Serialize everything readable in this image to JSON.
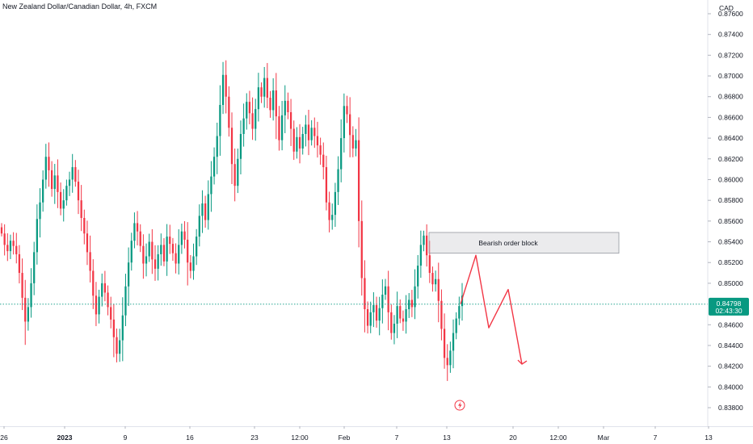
{
  "chart_data": {
    "type": "candlestick",
    "title": "New Zealand Dollar/Canadian Dollar, 4h, FXCM",
    "currency": "CAD",
    "ylim": [
      0.837,
      0.8778
    ],
    "y_ticks": [
      "0.87600",
      "0.87400",
      "0.87200",
      "0.87000",
      "0.86800",
      "0.86600",
      "0.86400",
      "0.86200",
      "0.86000",
      "0.85800",
      "0.85600",
      "0.85400",
      "0.85200",
      "0.85000",
      "0.84600",
      "0.84400",
      "0.84200",
      "0.84000",
      "0.83800"
    ],
    "x_ticks": [
      {
        "label": "26",
        "bold": false
      },
      {
        "label": "2023",
        "bold": true
      },
      {
        "label": "9",
        "bold": false
      },
      {
        "label": "16",
        "bold": false
      },
      {
        "label": "23",
        "bold": false
      },
      {
        "label": "12:00",
        "bold": false
      },
      {
        "label": "Feb",
        "bold": false
      },
      {
        "label": "7",
        "bold": false
      },
      {
        "label": "13",
        "bold": false
      },
      {
        "label": "20",
        "bold": false
      },
      {
        "label": "12:00",
        "bold": false
      },
      {
        "label": "Mar",
        "bold": false
      },
      {
        "label": "7",
        "bold": false
      },
      {
        "label": "13",
        "bold": false
      }
    ],
    "current_price": {
      "value": "0.84798",
      "countdown": "02:43:30",
      "level": 0.84798
    },
    "annotations": [
      {
        "type": "rectangle",
        "label": "Bearish order block",
        "price_top": 0.8549,
        "price_bottom": 0.8529
      }
    ],
    "projection_path_prices": [
      0.848,
      0.8527,
      0.8457,
      0.8494,
      0.8422
    ],
    "closes": [
      0.8548,
      0.8537,
      0.8531,
      0.8541,
      0.8536,
      0.8528,
      0.851,
      0.8486,
      0.8463,
      0.8477,
      0.85,
      0.853,
      0.8562,
      0.8578,
      0.86,
      0.8622,
      0.8609,
      0.8591,
      0.8604,
      0.8588,
      0.8572,
      0.858,
      0.8594,
      0.86,
      0.8612,
      0.8598,
      0.858,
      0.8563,
      0.8548,
      0.853,
      0.8512,
      0.8488,
      0.847,
      0.8487,
      0.85,
      0.8491,
      0.8477,
      0.8465,
      0.8448,
      0.8432,
      0.8445,
      0.8469,
      0.8497,
      0.852,
      0.8541,
      0.8558,
      0.855,
      0.8536,
      0.8519,
      0.8526,
      0.854,
      0.8523,
      0.8514,
      0.8528,
      0.8537,
      0.8521,
      0.8545,
      0.8538,
      0.8529,
      0.8519,
      0.8537,
      0.855,
      0.8542,
      0.852,
      0.8512,
      0.8526,
      0.8545,
      0.8565,
      0.8577,
      0.8561,
      0.8586,
      0.8603,
      0.8622,
      0.8642,
      0.8672,
      0.8701,
      0.868,
      0.865,
      0.8615,
      0.8594,
      0.862,
      0.8644,
      0.8659,
      0.8675,
      0.8664,
      0.8649,
      0.8668,
      0.8689,
      0.868,
      0.8698,
      0.8679,
      0.8667,
      0.8686,
      0.8661,
      0.8638,
      0.8662,
      0.8676,
      0.8665,
      0.8649,
      0.8627,
      0.8641,
      0.863,
      0.8644,
      0.8653,
      0.8638,
      0.865,
      0.8642,
      0.8633,
      0.8624,
      0.8612,
      0.8578,
      0.8561,
      0.8566,
      0.8588,
      0.861,
      0.864,
      0.8671,
      0.8663,
      0.8643,
      0.863,
      0.8638,
      0.856,
      0.8505,
      0.8475,
      0.8459,
      0.8472,
      0.8479,
      0.8464,
      0.8476,
      0.8489,
      0.8497,
      0.8472,
      0.8452,
      0.8461,
      0.8478,
      0.8466,
      0.8463,
      0.8475,
      0.8484,
      0.8477,
      0.8497,
      0.8517,
      0.8537,
      0.8546,
      0.8527,
      0.851,
      0.8499,
      0.8504,
      0.8483,
      0.8456,
      0.8428,
      0.8421,
      0.8435,
      0.8452,
      0.8466,
      0.8478,
      0.8488
    ]
  }
}
